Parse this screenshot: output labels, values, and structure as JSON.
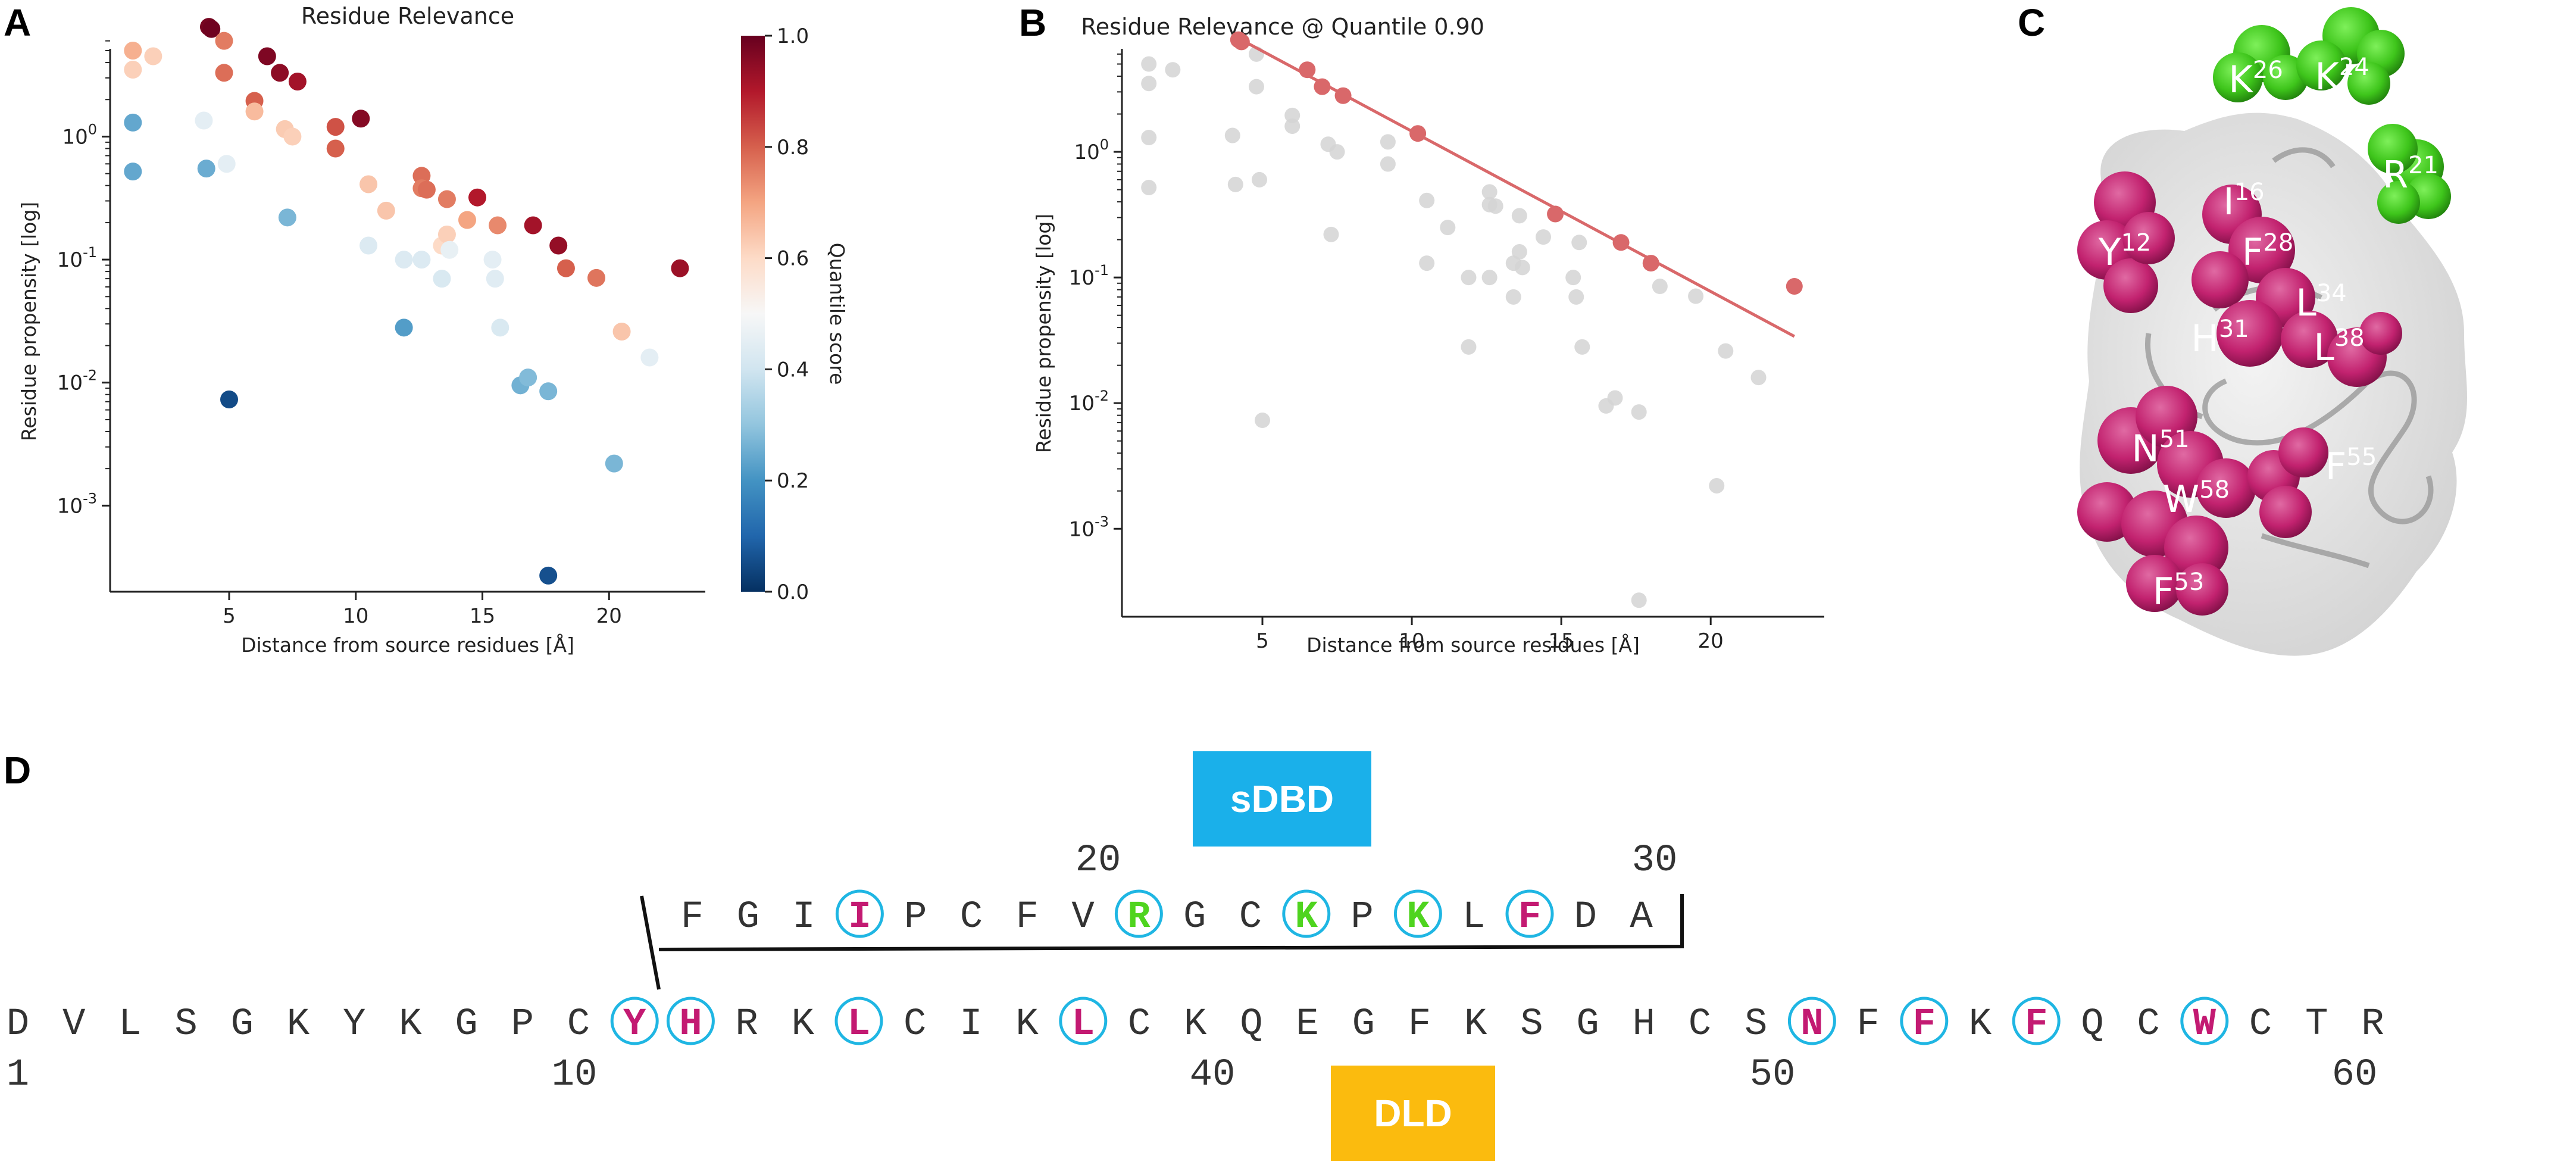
{
  "panels": {
    "a": "A",
    "b": "B",
    "c": "C",
    "d": "D"
  },
  "colors": {
    "fit_line": "#d9686a",
    "grey_point": "#d3d3d3",
    "circle_blue": "#1fb6e3",
    "magenta": "#c31a72",
    "green": "#4fd41f",
    "sdbd_bg": "#1ab0ea",
    "dld_bg": "#fbbb0e"
  },
  "chart_data": [
    {
      "type": "scatter",
      "title": "Residue Relevance",
      "xlabel": "Distance from source residues [Å]",
      "ylabel": "Residue propensity [log]",
      "xlim": [
        0.3,
        23.8
      ],
      "ylim_log10": [
        -3.7,
        0.82
      ],
      "x_ticks": [
        5,
        10,
        15,
        20
      ],
      "y_ticks": [
        -3,
        -2,
        -1,
        0
      ],
      "colorbar": {
        "label": "Quantile score",
        "range": [
          0.0,
          1.0
        ],
        "ticks": [
          0.0,
          0.2,
          0.4,
          0.6,
          0.8,
          1.0
        ],
        "colormap": "RdBu_r"
      },
      "points": [
        {
          "x": 1.2,
          "y": 5.0,
          "q": 0.68
        },
        {
          "x": 1.2,
          "y": 3.5,
          "q": 0.62
        },
        {
          "x": 1.2,
          "y": 1.3,
          "q": 0.24
        },
        {
          "x": 1.2,
          "y": 0.52,
          "q": 0.24
        },
        {
          "x": 2.0,
          "y": 4.5,
          "q": 0.62
        },
        {
          "x": 4.0,
          "y": 1.35,
          "q": 0.45
        },
        {
          "x": 4.1,
          "y": 0.55,
          "q": 0.25
        },
        {
          "x": 4.2,
          "y": 7.8,
          "q": 0.98
        },
        {
          "x": 4.3,
          "y": 7.5,
          "q": 0.99
        },
        {
          "x": 4.8,
          "y": 6.0,
          "q": 0.76
        },
        {
          "x": 4.8,
          "y": 3.3,
          "q": 0.78
        },
        {
          "x": 4.9,
          "y": 0.6,
          "q": 0.45
        },
        {
          "x": 5.0,
          "y": 0.0073,
          "q": 0.05
        },
        {
          "x": 6.0,
          "y": 1.95,
          "q": 0.8
        },
        {
          "x": 6.0,
          "y": 1.6,
          "q": 0.66
        },
        {
          "x": 6.5,
          "y": 4.5,
          "q": 0.97
        },
        {
          "x": 7.0,
          "y": 3.3,
          "q": 0.95
        },
        {
          "x": 7.2,
          "y": 1.15,
          "q": 0.63
        },
        {
          "x": 7.3,
          "y": 0.22,
          "q": 0.27
        },
        {
          "x": 7.5,
          "y": 1.0,
          "q": 0.62
        },
        {
          "x": 7.7,
          "y": 2.8,
          "q": 0.92
        },
        {
          "x": 9.2,
          "y": 1.2,
          "q": 0.82
        },
        {
          "x": 9.2,
          "y": 0.8,
          "q": 0.8
        },
        {
          "x": 10.2,
          "y": 1.4,
          "q": 0.96
        },
        {
          "x": 10.5,
          "y": 0.41,
          "q": 0.64
        },
        {
          "x": 10.5,
          "y": 0.13,
          "q": 0.43
        },
        {
          "x": 11.2,
          "y": 0.25,
          "q": 0.64
        },
        {
          "x": 11.9,
          "y": 0.1,
          "q": 0.43
        },
        {
          "x": 11.9,
          "y": 0.028,
          "q": 0.22
        },
        {
          "x": 12.6,
          "y": 0.48,
          "q": 0.78
        },
        {
          "x": 12.6,
          "y": 0.38,
          "q": 0.76
        },
        {
          "x": 12.8,
          "y": 0.37,
          "q": 0.78
        },
        {
          "x": 12.6,
          "y": 0.1,
          "q": 0.43
        },
        {
          "x": 13.4,
          "y": 0.13,
          "q": 0.6
        },
        {
          "x": 13.4,
          "y": 0.07,
          "q": 0.42
        },
        {
          "x": 13.6,
          "y": 0.31,
          "q": 0.76
        },
        {
          "x": 13.6,
          "y": 0.16,
          "q": 0.62
        },
        {
          "x": 13.7,
          "y": 0.12,
          "q": 0.46
        },
        {
          "x": 14.4,
          "y": 0.21,
          "q": 0.7
        },
        {
          "x": 14.8,
          "y": 0.32,
          "q": 0.9
        },
        {
          "x": 15.4,
          "y": 0.1,
          "q": 0.45
        },
        {
          "x": 15.5,
          "y": 0.07,
          "q": 0.44
        },
        {
          "x": 15.6,
          "y": 0.19,
          "q": 0.74
        },
        {
          "x": 15.7,
          "y": 0.028,
          "q": 0.42
        },
        {
          "x": 16.5,
          "y": 0.0095,
          "q": 0.26
        },
        {
          "x": 16.8,
          "y": 0.011,
          "q": 0.28
        },
        {
          "x": 17.0,
          "y": 0.19,
          "q": 0.92
        },
        {
          "x": 17.6,
          "y": 0.0085,
          "q": 0.27
        },
        {
          "x": 17.6,
          "y": 0.00027,
          "q": 0.06
        },
        {
          "x": 18.0,
          "y": 0.13,
          "q": 0.94
        },
        {
          "x": 18.3,
          "y": 0.085,
          "q": 0.8
        },
        {
          "x": 19.5,
          "y": 0.071,
          "q": 0.77
        },
        {
          "x": 20.2,
          "y": 0.0022,
          "q": 0.27
        },
        {
          "x": 20.5,
          "y": 0.026,
          "q": 0.64
        },
        {
          "x": 21.6,
          "y": 0.016,
          "q": 0.45
        },
        {
          "x": 22.8,
          "y": 0.085,
          "q": 0.93
        }
      ]
    },
    {
      "type": "scatter",
      "title": "Residue Relevance @ Quantile 0.90",
      "xlabel": "Distance from source residues [Å]",
      "ylabel": "Residue propensity [log]",
      "xlim": [
        0.3,
        23.8
      ],
      "ylim_log10": [
        -3.7,
        0.82
      ],
      "x_ticks": [
        5,
        10,
        15,
        20
      ],
      "y_ticks": [
        -3,
        -2,
        -1,
        0
      ],
      "fit_line": {
        "x1": 4.0,
        "y1": 8.5,
        "x2": 22.8,
        "y2": 0.034
      },
      "highlighted": [
        {
          "x": 4.2,
          "y": 7.8
        },
        {
          "x": 4.3,
          "y": 7.5
        },
        {
          "x": 6.5,
          "y": 4.5
        },
        {
          "x": 7.0,
          "y": 3.3
        },
        {
          "x": 7.7,
          "y": 2.8
        },
        {
          "x": 10.2,
          "y": 1.4
        },
        {
          "x": 14.8,
          "y": 0.32
        },
        {
          "x": 17.0,
          "y": 0.19
        },
        {
          "x": 18.0,
          "y": 0.13
        },
        {
          "x": 22.8,
          "y": 0.085
        }
      ]
    }
  ],
  "structure_labels": [
    {
      "letter": "K",
      "num": "26",
      "color": "green"
    },
    {
      "letter": "K",
      "num": "24",
      "color": "green"
    },
    {
      "letter": "R",
      "num": "21",
      "color": "green"
    },
    {
      "letter": "I",
      "num": "16",
      "color": "magenta"
    },
    {
      "letter": "Y",
      "num": "12",
      "color": "magenta"
    },
    {
      "letter": "F",
      "num": "28",
      "color": "magenta"
    },
    {
      "letter": "L",
      "num": "34",
      "color": "magenta"
    },
    {
      "letter": "H",
      "num": "31",
      "color": "magenta"
    },
    {
      "letter": "L",
      "num": "38",
      "color": "magenta"
    },
    {
      "letter": "N",
      "num": "51",
      "color": "magenta"
    },
    {
      "letter": "F",
      "num": "55",
      "color": "magenta"
    },
    {
      "letter": "W",
      "num": "58",
      "color": "magenta"
    },
    {
      "letter": "F",
      "num": "53",
      "color": "magenta"
    }
  ],
  "sequence": {
    "sdbd_label": "sDBD",
    "dld_label": "DLD",
    "top_numbers": [
      "20",
      "30"
    ],
    "bottom_numbers": [
      "1",
      "10",
      "40",
      "50",
      "60"
    ],
    "top_row": [
      {
        "r": "F"
      },
      {
        "r": "G"
      },
      {
        "r": "I"
      },
      {
        "r": "I",
        "hl": "magenta"
      },
      {
        "r": "P"
      },
      {
        "r": "C"
      },
      {
        "r": "F"
      },
      {
        "r": "V"
      },
      {
        "r": "R",
        "hl": "green"
      },
      {
        "r": "G"
      },
      {
        "r": "C"
      },
      {
        "r": "K",
        "hl": "green"
      },
      {
        "r": "P"
      },
      {
        "r": "K",
        "hl": "green"
      },
      {
        "r": "L"
      },
      {
        "r": "F",
        "hl": "magenta"
      },
      {
        "r": "D"
      },
      {
        "r": "A"
      }
    ],
    "bottom_row": [
      {
        "r": "D"
      },
      {
        "r": "V"
      },
      {
        "r": "L"
      },
      {
        "r": "S"
      },
      {
        "r": "G"
      },
      {
        "r": "K"
      },
      {
        "r": "Y"
      },
      {
        "r": "K"
      },
      {
        "r": "G"
      },
      {
        "r": "P"
      },
      {
        "r": "C"
      },
      {
        "r": "Y",
        "hl": "magenta"
      },
      {
        "r": "H",
        "hl": "magenta"
      },
      {
        "r": "R"
      },
      {
        "r": "K"
      },
      {
        "r": "L",
        "hl": "magenta"
      },
      {
        "r": "C"
      },
      {
        "r": "I"
      },
      {
        "r": "K"
      },
      {
        "r": "L",
        "hl": "magenta"
      },
      {
        "r": "C"
      },
      {
        "r": "K"
      },
      {
        "r": "Q"
      },
      {
        "r": "E"
      },
      {
        "r": "G"
      },
      {
        "r": "F"
      },
      {
        "r": "K"
      },
      {
        "r": "S"
      },
      {
        "r": "G"
      },
      {
        "r": "H"
      },
      {
        "r": "C"
      },
      {
        "r": "S"
      },
      {
        "r": "N",
        "hl": "magenta"
      },
      {
        "r": "F"
      },
      {
        "r": "F",
        "hl": "magenta"
      },
      {
        "r": "K"
      },
      {
        "r": "F",
        "hl": "magenta"
      },
      {
        "r": "Q"
      },
      {
        "r": "C"
      },
      {
        "r": "W",
        "hl": "magenta"
      },
      {
        "r": "C"
      },
      {
        "r": "T"
      },
      {
        "r": "R"
      }
    ]
  }
}
